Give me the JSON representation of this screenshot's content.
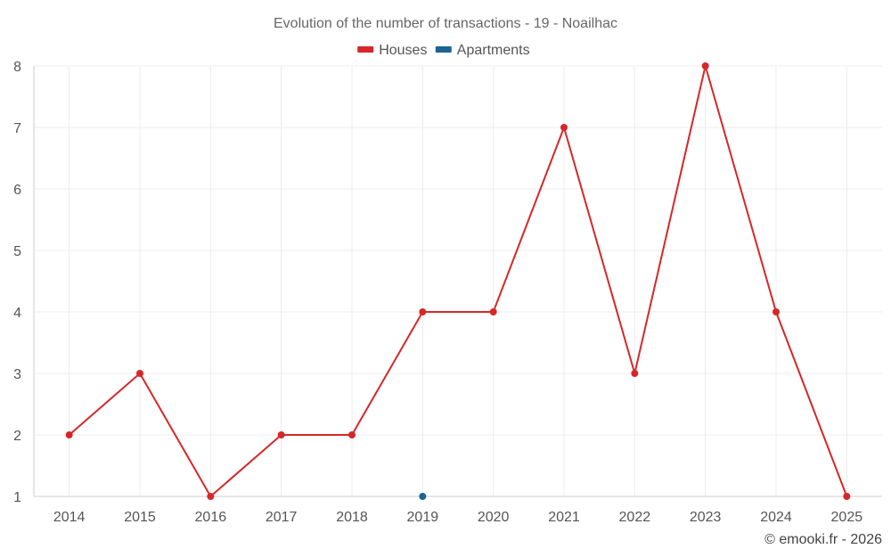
{
  "chart_data": {
    "type": "line",
    "title": "Evolution of the number of transactions - 19 - Noailhac",
    "x": [
      "2014",
      "2015",
      "2016",
      "2017",
      "2018",
      "2019",
      "2020",
      "2021",
      "2022",
      "2023",
      "2024",
      "2025"
    ],
    "ylim": [
      1,
      8
    ],
    "yticks": [
      1,
      2,
      3,
      4,
      5,
      6,
      7,
      8
    ],
    "grid": true,
    "legend_position": "top-center",
    "series": [
      {
        "name": "Houses",
        "color": "#d62728",
        "values": [
          2,
          3,
          1,
          2,
          2,
          4,
          4,
          7,
          3,
          8,
          4,
          1
        ]
      },
      {
        "name": "Apartments",
        "color": "#1a6496",
        "values": [
          null,
          null,
          null,
          null,
          null,
          1,
          null,
          null,
          null,
          null,
          null,
          null
        ]
      }
    ],
    "xlabel": "",
    "ylabel": ""
  },
  "credit": "© emooki.fr - 2026"
}
